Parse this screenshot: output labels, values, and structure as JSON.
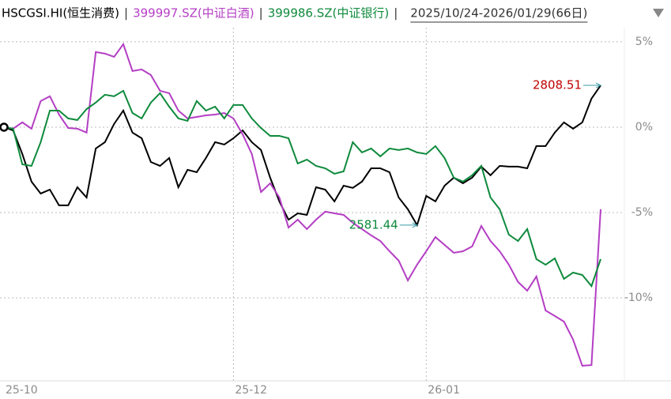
{
  "header": {
    "separator": "|",
    "period": "2025/10/24-2026/01/29(66日)"
  },
  "chart_data": {
    "type": "line",
    "categories": [
      "25-10",
      null,
      null,
      null,
      null,
      null,
      null,
      null,
      null,
      null,
      null,
      null,
      null,
      null,
      null,
      null,
      null,
      null,
      null,
      null,
      null,
      null,
      null,
      null,
      null,
      "25-12",
      null,
      null,
      null,
      null,
      null,
      null,
      null,
      null,
      null,
      null,
      null,
      null,
      null,
      null,
      null,
      null,
      null,
      null,
      null,
      null,
      "26-01",
      null,
      null,
      null,
      null,
      null,
      null,
      null,
      null,
      null,
      null,
      null,
      null,
      null,
      null,
      null,
      null,
      null,
      null,
      null
    ],
    "series": [
      {
        "name": "HSCGSI.HI(恒生消费)",
        "color": "#000000",
        "values": [
          0,
          -0.19,
          -1.57,
          -3.19,
          -3.89,
          -3.66,
          -4.58,
          -4.58,
          -3.52,
          -4.12,
          -1.25,
          -0.88,
          0.19,
          0.97,
          -0.32,
          -0.65,
          -2.04,
          -2.27,
          -1.81,
          -3.52,
          -2.5,
          -2.64,
          -1.81,
          -0.88,
          -1.02,
          -0.65,
          -0.19,
          -0.88,
          -1.34,
          -2.96,
          -4.35,
          -5.42,
          -5.05,
          -5.14,
          -3.52,
          -3.66,
          -4.35,
          -3.43,
          -3.56,
          -3.19,
          -2.41,
          -2.41,
          -2.64,
          -4.12,
          -4.81,
          -5.74,
          -4.03,
          -4.35,
          -3.43,
          -2.96,
          -3.29,
          -2.96,
          -2.31,
          -2.82,
          -2.27,
          -2.31,
          -2.31,
          -2.41,
          -1.11,
          -1.11,
          -0.32,
          0.28,
          -0.09,
          0.28,
          1.67,
          2.45
        ]
      },
      {
        "name": "399997.SZ(中证白酒)",
        "color": "#b43ec4",
        "values": [
          0,
          -0.09,
          0.28,
          -0.09,
          1.53,
          1.81,
          0.74,
          -0.05,
          -0.09,
          -0.32,
          4.4,
          4.31,
          4.12,
          4.86,
          3.29,
          3.38,
          3.06,
          2.13,
          1.99,
          0.97,
          0.51,
          0.6,
          0.69,
          0.74,
          0.83,
          0.51,
          -0.42,
          -1.57,
          -3.8,
          -3.29,
          -4.12,
          -5.88,
          -5.42,
          -5.97,
          -5.42,
          -4.95,
          -5.05,
          -5.14,
          -5.6,
          -5.97,
          -6.34,
          -6.67,
          -7.27,
          -7.82,
          -8.98,
          -8.06,
          -7.27,
          -6.44,
          -6.9,
          -7.36,
          -7.27,
          -6.99,
          -5.79,
          -6.67,
          -7.27,
          -8.06,
          -9.07,
          -9.58,
          -8.75,
          -10.74,
          -11.06,
          -11.39,
          -12.45,
          -13.98,
          -13.94,
          -4.81
        ]
      },
      {
        "name": "399986.SZ(中证银行)",
        "color": "#0e8a3c",
        "values": [
          0,
          -0.09,
          -2.18,
          -2.27,
          -0.88,
          0.97,
          0.97,
          0.51,
          0.42,
          1.06,
          1.44,
          1.9,
          1.81,
          2.13,
          0.83,
          0.51,
          1.44,
          1.99,
          1.2,
          0.51,
          0.37,
          1.53,
          0.97,
          1.2,
          0.51,
          1.3,
          1.3,
          0.51,
          -0.05,
          -0.51,
          -0.51,
          -0.65,
          -2.13,
          -1.9,
          -2.27,
          -2.41,
          -2.73,
          -2.59,
          -0.88,
          -1.48,
          -1.25,
          -1.71,
          -1.25,
          -1.34,
          -1.25,
          -1.48,
          -1.57,
          -1.11,
          -1.81,
          -2.96,
          -3.19,
          -2.82,
          -2.27,
          -4.12,
          -4.81,
          -6.3,
          -6.67,
          -5.97,
          -7.73,
          -8.06,
          -7.69,
          -8.89,
          -8.52,
          -8.66,
          -9.31,
          -7.73
        ]
      }
    ],
    "ylim": [
      -14.77,
      5.83
    ],
    "yticks": [
      {
        "value": 5,
        "label": "5%"
      },
      {
        "value": 0,
        "label": "0%"
      },
      {
        "value": -5,
        "label": "-5%"
      },
      {
        "value": -10,
        "label": "-10%"
      }
    ],
    "grid": true,
    "annotations": [
      {
        "text": "2808.51",
        "color": "#c00000"
      },
      {
        "text": "2581.44",
        "color": "#0e8a3c"
      }
    ]
  }
}
